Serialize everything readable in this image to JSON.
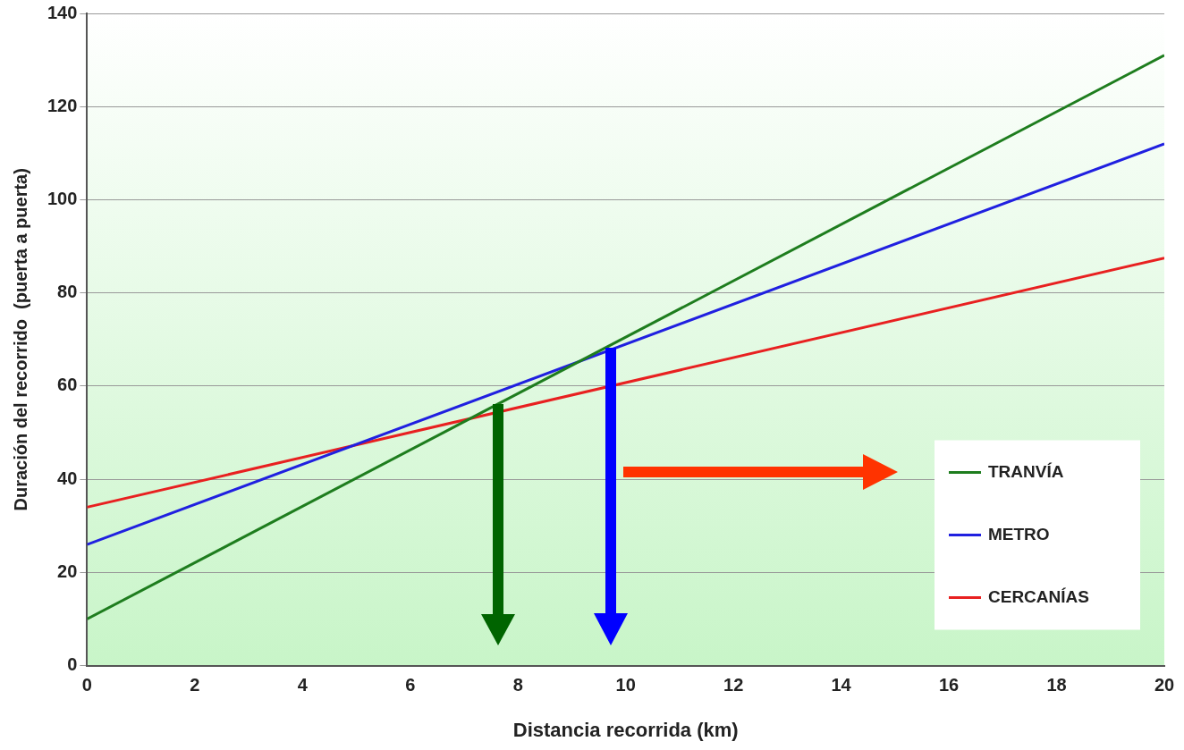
{
  "chart_data": {
    "type": "line",
    "xlabel": "Distancia recorrida (km)",
    "ylabel": "Duración del recorrido  (puerta a puerta)",
    "x": [
      0,
      20
    ],
    "series": [
      {
        "name": "TRANVÍA",
        "color": "#1e7d1e",
        "values": [
          10,
          131
        ]
      },
      {
        "name": "METRO",
        "color": "#2020e0",
        "values": [
          26,
          112
        ]
      },
      {
        "name": "CERCANÍAS",
        "color": "#e82020",
        "values": [
          34,
          87.5
        ]
      }
    ],
    "xlim": [
      0,
      20
    ],
    "xticks": [
      0,
      2,
      4,
      6,
      8,
      10,
      12,
      14,
      16,
      18,
      20
    ],
    "ylim": [
      0,
      140
    ],
    "yticks": [
      0,
      20,
      40,
      60,
      80,
      100,
      120,
      140
    ],
    "grid": "y",
    "legend": "bottom right",
    "marker": "none",
    "line_style": "solid"
  }
}
